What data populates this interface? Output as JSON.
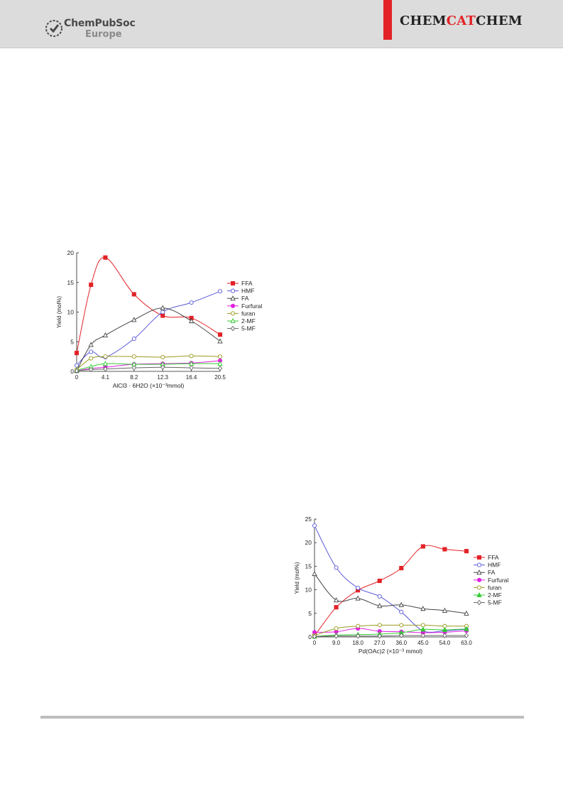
{
  "header": {
    "publisher_name": "ChemPubSoc",
    "publisher_sub": "Europe",
    "journal_part1": "CHEM",
    "journal_part2": "CAT",
    "journal_part3": "CHEM",
    "accent_color": "#e32227"
  },
  "chart_data": [
    {
      "type": "line",
      "title": "",
      "xlabel": "AlCl3 · 6H2O (×10⁻³mmol)",
      "ylabel": "Yield (mol%)",
      "x_ticks": [
        "0",
        "4.1",
        "8.2",
        "12.3",
        "16.4",
        "20.5"
      ],
      "xlim": [
        0,
        20.5
      ],
      "ylim": [
        0,
        20
      ],
      "y_ticks": [
        0,
        5,
        10,
        15,
        20
      ],
      "legend_position": "right",
      "x": [
        0,
        2.05,
        4.1,
        8.2,
        12.3,
        16.4,
        20.5
      ],
      "series": [
        {
          "name": "FFA",
          "color": "#e32227",
          "marker": "square-filled",
          "values": [
            3.1,
            14.6,
            19.2,
            13.0,
            9.4,
            9.0,
            6.2
          ]
        },
        {
          "name": "HMF",
          "color": "#5a5ad8",
          "marker": "circle-open",
          "values": [
            1.0,
            3.3,
            2.4,
            5.5,
            10.0,
            11.6,
            13.5
          ]
        },
        {
          "name": "FA",
          "color": "#444444",
          "marker": "triangle-open",
          "values": [
            0.1,
            4.5,
            6.1,
            8.7,
            10.7,
            8.5,
            5.1
          ]
        },
        {
          "name": "Furfural",
          "color": "#e020e0",
          "marker": "circle-filled",
          "values": [
            0.1,
            0.5,
            0.7,
            1.2,
            1.3,
            1.4,
            1.8
          ]
        },
        {
          "name": "furan",
          "color": "#9a9a20",
          "marker": "circle-open",
          "values": [
            0.3,
            2.2,
            2.5,
            2.5,
            2.4,
            2.6,
            2.5
          ]
        },
        {
          "name": "2-MF",
          "color": "#33cc33",
          "marker": "triangle-open",
          "values": [
            0.2,
            0.8,
            1.3,
            1.2,
            1.2,
            1.3,
            1.3
          ]
        },
        {
          "name": "5-MF",
          "color": "#666666",
          "marker": "diamond-open",
          "values": [
            0.1,
            0.3,
            0.4,
            0.6,
            0.7,
            0.6,
            0.5
          ]
        }
      ]
    },
    {
      "type": "line",
      "title": "",
      "xlabel": "Pd(OAc)2 (×10⁻³ mmol)",
      "ylabel": "Yield (mol%)",
      "x_ticks": [
        "0",
        "9.0",
        "18.0",
        "27.0",
        "36.0",
        "45.0",
        "54.0",
        "63.0"
      ],
      "xlim": [
        0,
        63
      ],
      "ylim": [
        0,
        25
      ],
      "y_ticks": [
        0,
        5,
        10,
        15,
        20,
        25
      ],
      "legend_position": "right",
      "x": [
        0,
        9,
        18,
        27,
        36,
        45,
        54,
        63
      ],
      "series": [
        {
          "name": "FFA",
          "color": "#e32227",
          "marker": "square-filled",
          "values": [
            0.2,
            6.3,
            9.9,
            11.9,
            14.6,
            19.2,
            18.6,
            18.2
          ]
        },
        {
          "name": "HMF",
          "color": "#5a5ad8",
          "marker": "circle-open",
          "values": [
            23.6,
            14.7,
            10.4,
            8.6,
            5.3,
            1.3,
            1.3,
            1.6
          ]
        },
        {
          "name": "FA",
          "color": "#444444",
          "marker": "triangle-open",
          "values": [
            13.4,
            7.8,
            8.2,
            6.6,
            6.8,
            6.0,
            5.6,
            5.0
          ]
        },
        {
          "name": "Furfural",
          "color": "#e020e0",
          "marker": "circle-filled",
          "values": [
            1.0,
            1.1,
            1.8,
            1.2,
            1.1,
            0.9,
            1.0,
            1.3
          ]
        },
        {
          "name": "furan",
          "color": "#9a9a20",
          "marker": "circle-open",
          "values": [
            0.3,
            1.8,
            2.3,
            2.5,
            2.5,
            2.5,
            2.3,
            2.3
          ]
        },
        {
          "name": "2-MF",
          "color": "#33cc33",
          "marker": "triangle-filled",
          "values": [
            0.1,
            0.4,
            0.5,
            0.6,
            0.9,
            1.6,
            1.5,
            1.7
          ]
        },
        {
          "name": "5-MF",
          "color": "#666666",
          "marker": "diamond-open",
          "values": [
            0.1,
            0.2,
            0.2,
            0.2,
            0.3,
            0.3,
            0.3,
            0.3
          ]
        }
      ]
    }
  ]
}
